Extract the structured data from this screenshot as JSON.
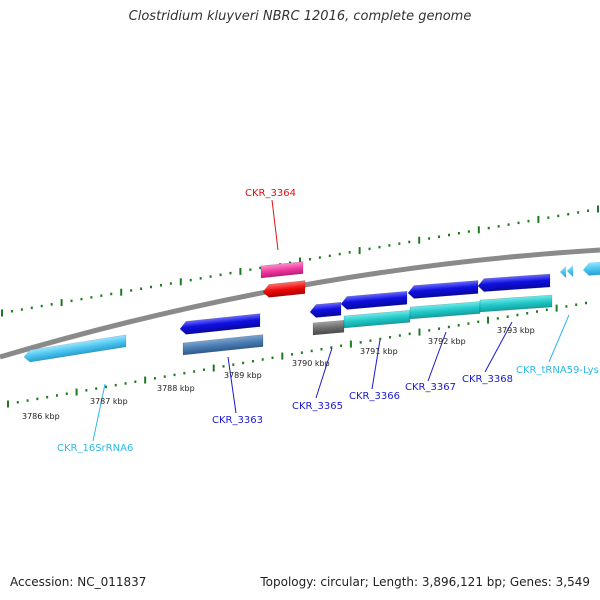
{
  "title": "Clostridium kluyveri NBRC 12016, complete genome",
  "footer": {
    "accession": "Accession: NC_011837",
    "topology": "Topology: circular; Length: 3,896,121 bp; Genes: 3,549"
  },
  "colors": {
    "background": "#ffffff",
    "genome_line": "#8a8a8a",
    "tick_marks": "#1e7a1e",
    "gene_blue": "#1010e0",
    "gene_steelblue": "#4a7cb0",
    "gene_cyan": "#22c8c8",
    "gene_lightblue": "#4cc6f0",
    "gene_pink": "#f03ca0",
    "gene_red": "#ee0a0a",
    "gene_gray": "#6e6e6e",
    "label_blue": "#1a1ad0",
    "label_red": "#e01010",
    "label_cyan": "#30b8e6"
  },
  "kbp_labels": [
    "3786 kbp",
    "3787 kbp",
    "3788 kbp",
    "3789 kbp",
    "3790 kbp",
    "3791 kbp",
    "3792 kbp",
    "3793 kbp"
  ],
  "gene_labels": [
    {
      "id": "CKR_3364",
      "color": "red"
    },
    {
      "id": "CKR_3363",
      "color": "blue"
    },
    {
      "id": "CKR_3365",
      "color": "blue"
    },
    {
      "id": "CKR_3366",
      "color": "blue"
    },
    {
      "id": "CKR_3367",
      "color": "blue"
    },
    {
      "id": "CKR_3368",
      "color": "blue"
    },
    {
      "id": "CKR_tRNA59-Lys",
      "color": "cyan"
    },
    {
      "id": "CKR_16SrRNA6",
      "color": "cyan"
    }
  ]
}
